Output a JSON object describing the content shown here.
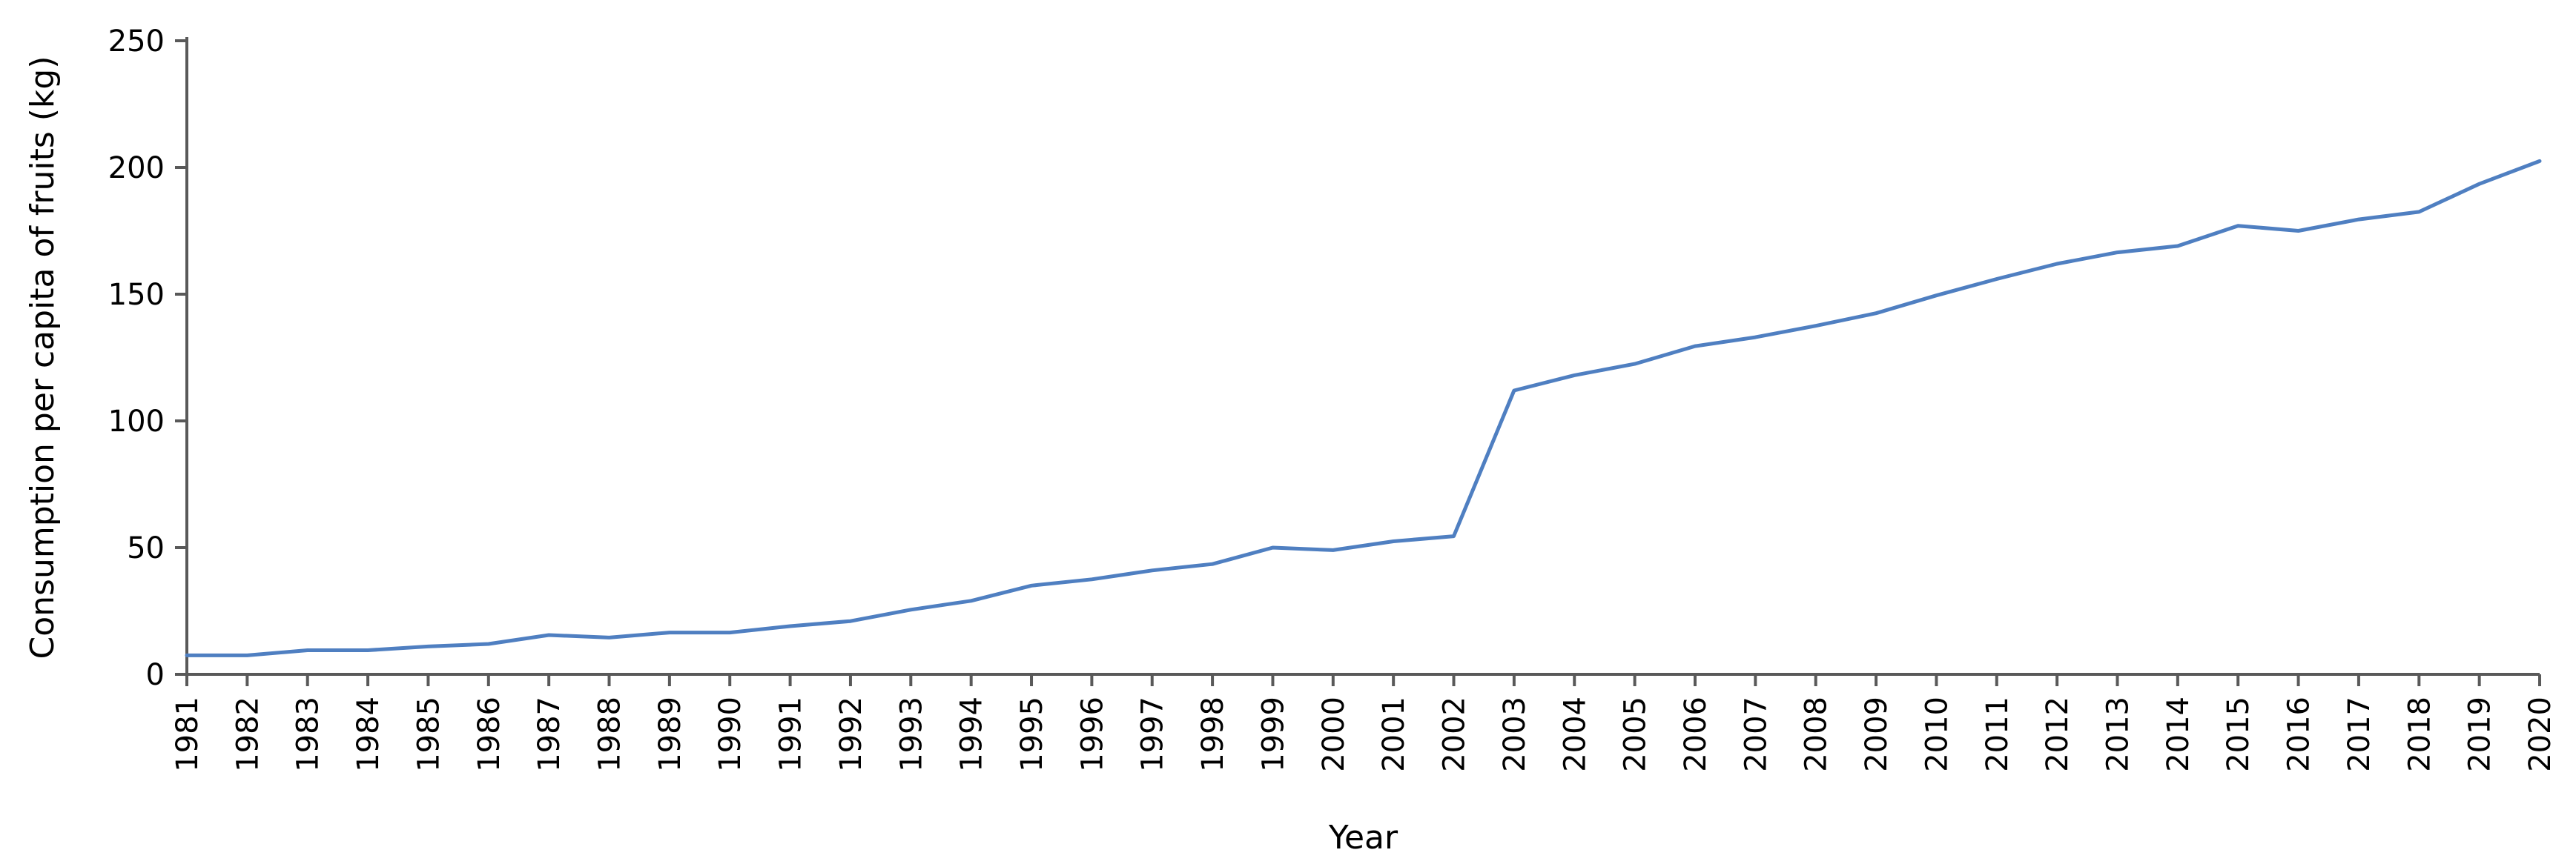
{
  "chart_data": {
    "type": "line",
    "title": "",
    "xlabel": "Year",
    "ylabel": "Consumption per capita of fruits (kg)",
    "x": [
      "1981",
      "1982",
      "1983",
      "1984",
      "1985",
      "1986",
      "1987",
      "1988",
      "1989",
      "1990",
      "1991",
      "1992",
      "1993",
      "1994",
      "1995",
      "1996",
      "1997",
      "1998",
      "1999",
      "2000",
      "2001",
      "2002",
      "2003",
      "2004",
      "2005",
      "2006",
      "2007",
      "2008",
      "2009",
      "2010",
      "2011",
      "2012",
      "2013",
      "2014",
      "2015",
      "2016",
      "2017",
      "2018",
      "2019",
      "2020"
    ],
    "yticks": [
      0,
      50,
      100,
      150,
      200,
      250
    ],
    "ylim": [
      0,
      250
    ],
    "grid": false,
    "legend": "none",
    "series": [
      {
        "values": [
          7.5,
          7.5,
          9.5,
          9.5,
          11,
          12,
          15.5,
          14.5,
          16.5,
          16.5,
          19,
          21,
          25.5,
          29,
          35,
          37.5,
          41,
          43.5,
          50,
          49,
          52.5,
          54.5,
          112,
          118,
          122.5,
          129.5,
          133,
          137.5,
          142.5,
          149.5,
          156,
          162,
          166.5,
          169,
          177,
          175,
          179.5,
          182.5,
          193.5,
          202.5
        ],
        "color": "#4f7fc1"
      }
    ]
  }
}
